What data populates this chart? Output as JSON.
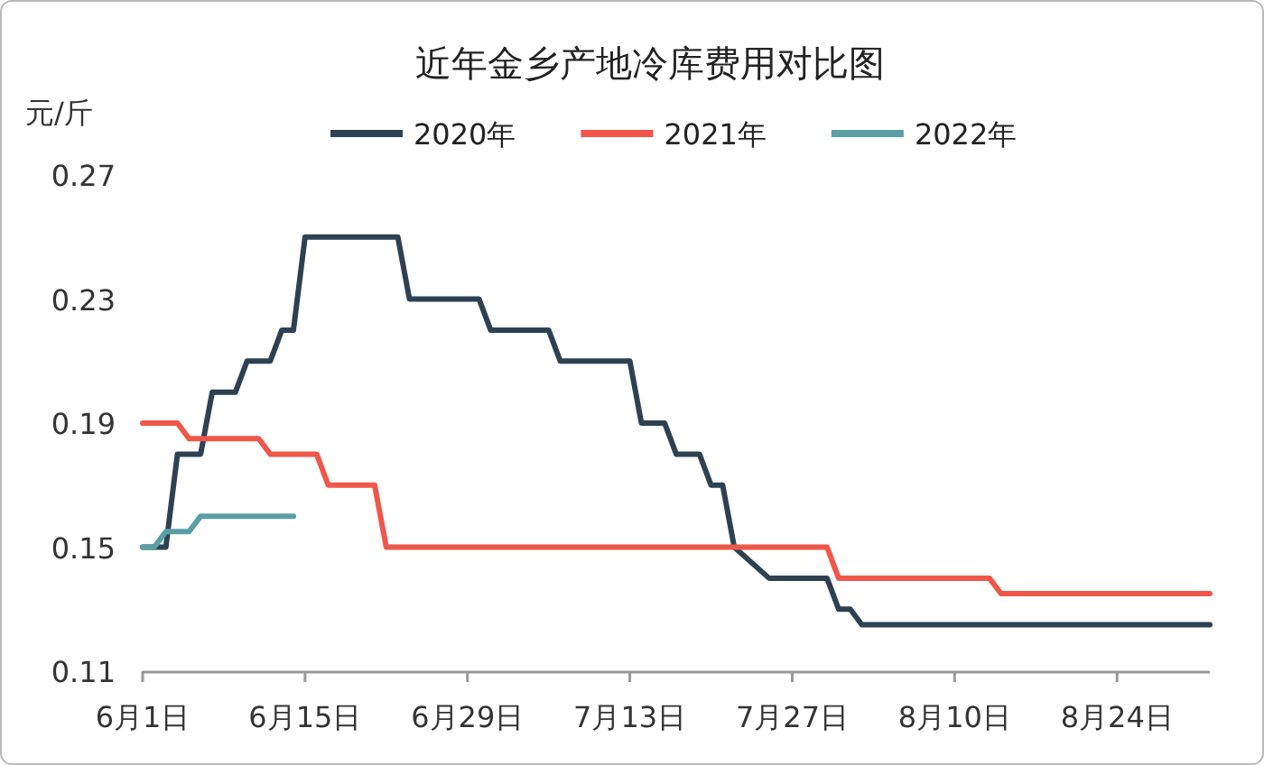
{
  "chart_data": {
    "type": "line",
    "title": "近年金乡产地冷库费用对比图",
    "ylabel": "元/斤",
    "legend": "top",
    "grid": false,
    "marker": "none",
    "line_style": "solid",
    "xlim": [
      "--06-01",
      "--09-01"
    ],
    "xticks": [
      {
        "value": "--06-01",
        "label": "6月1日"
      },
      {
        "value": "--06-15",
        "label": "6月15日"
      },
      {
        "value": "--06-29",
        "label": "6月29日"
      },
      {
        "value": "--07-13",
        "label": "7月13日"
      },
      {
        "value": "--07-27",
        "label": "7月27日"
      },
      {
        "value": "--08-10",
        "label": "8月10日"
      },
      {
        "value": "--08-24",
        "label": "8月24日"
      }
    ],
    "ylim": [
      0.11,
      0.27
    ],
    "yticks": [
      0.11,
      0.15,
      0.19,
      0.23,
      0.27
    ],
    "series": [
      {
        "name": "2020年",
        "color": "#2e4152",
        "x": [
          "--06-01",
          "--06-03",
          "--06-04",
          "--06-06",
          "--06-07",
          "--06-09",
          "--06-10",
          "--06-12",
          "--06-13",
          "--06-14",
          "--06-15",
          "--06-23",
          "--06-24",
          "--06-30",
          "--07-01",
          "--07-06",
          "--07-07",
          "--07-13",
          "--07-14",
          "--07-16",
          "--07-17",
          "--07-19",
          "--07-20",
          "--07-21",
          "--07-22",
          "--07-25",
          "--07-30",
          "--07-31",
          "--08-01",
          "--08-02",
          "--09-01"
        ],
        "values": [
          0.15,
          0.15,
          0.18,
          0.18,
          0.2,
          0.2,
          0.21,
          0.21,
          0.22,
          0.22,
          0.25,
          0.25,
          0.23,
          0.23,
          0.22,
          0.22,
          0.21,
          0.21,
          0.19,
          0.19,
          0.18,
          0.18,
          0.17,
          0.17,
          0.15,
          0.14,
          0.14,
          0.13,
          0.13,
          0.125,
          0.125
        ]
      },
      {
        "name": "2021年",
        "color": "#f0564a",
        "x": [
          "--06-01",
          "--06-04",
          "--06-05",
          "--06-11",
          "--06-12",
          "--06-16",
          "--06-17",
          "--06-21",
          "--06-22",
          "--07-30",
          "--07-31",
          "--08-13",
          "--08-14",
          "--09-01"
        ],
        "values": [
          0.19,
          0.19,
          0.185,
          0.185,
          0.18,
          0.18,
          0.17,
          0.17,
          0.15,
          0.15,
          0.14,
          0.14,
          0.135,
          0.135
        ]
      },
      {
        "name": "2022年",
        "color": "#5a9ea6",
        "x": [
          "--06-01",
          "--06-02",
          "--06-03",
          "--06-05",
          "--06-06",
          "--06-14"
        ],
        "values": [
          0.15,
          0.15,
          0.155,
          0.155,
          0.16,
          0.16
        ]
      }
    ]
  }
}
